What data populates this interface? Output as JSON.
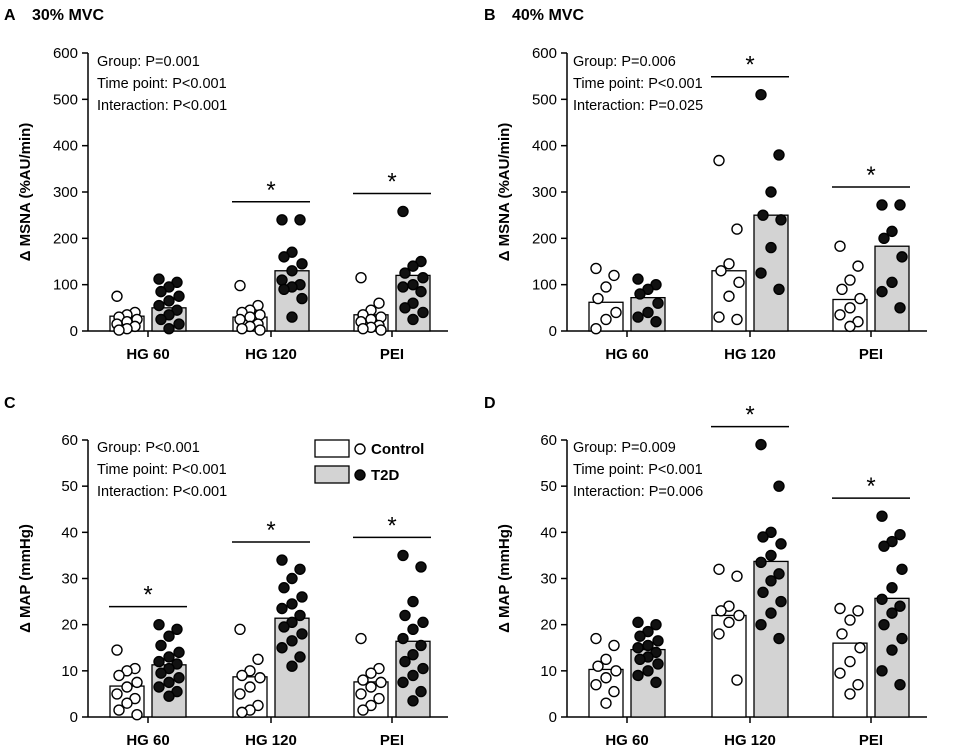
{
  "chart_data": [
    {
      "type": "bar",
      "panel": "A",
      "title": "30% MVC",
      "ylabel": "Δ MSNA (%AU/min)",
      "xlabel": "",
      "ylim": [
        0,
        600
      ],
      "yticks": [
        0,
        100,
        200,
        300,
        400,
        500,
        600
      ],
      "categories": [
        "HG 60",
        "HG 120",
        "PEI"
      ],
      "stats": [
        "Group: P=0.001",
        "Time point: P<0.001",
        "Interaction: P<0.001"
      ],
      "significance": [
        false,
        true,
        true
      ],
      "series": [
        {
          "name": "Control",
          "values": [
            32,
            30,
            35
          ],
          "points": [
            [
              75,
              40,
              35,
              30,
              25,
              20,
              15,
              10,
              5,
              2
            ],
            [
              98,
              55,
              45,
              40,
              35,
              30,
              25,
              15,
              10,
              5,
              2
            ],
            [
              115,
              60,
              45,
              35,
              30,
              25,
              20,
              12,
              8,
              5,
              2
            ]
          ]
        },
        {
          "name": "T2D",
          "values": [
            50,
            130,
            120
          ],
          "points": [
            [
              112,
              105,
              95,
              85,
              75,
              65,
              55,
              45,
              35,
              25,
              15,
              5
            ],
            [
              240,
              240,
              170,
              160,
              145,
              130,
              110,
              100,
              95,
              90,
              70,
              30
            ],
            [
              258,
              150,
              140,
              125,
              115,
              100,
              95,
              85,
              60,
              50,
              40,
              25
            ]
          ]
        }
      ]
    },
    {
      "type": "bar",
      "panel": "B",
      "title": "40% MVC",
      "ylabel": "Δ MSNA (%AU/min)",
      "xlabel": "",
      "ylim": [
        0,
        600
      ],
      "yticks": [
        0,
        100,
        200,
        300,
        400,
        500,
        600
      ],
      "categories": [
        "HG 60",
        "HG 120",
        "PEI"
      ],
      "stats": [
        "Group: P=0.006",
        "Time point: P<0.001",
        "Interaction: P=0.025"
      ],
      "significance": [
        false,
        true,
        true
      ],
      "series": [
        {
          "name": "Control",
          "values": [
            62,
            130,
            68
          ],
          "points": [
            [
              135,
              120,
              95,
              70,
              40,
              25,
              5
            ],
            [
              368,
              220,
              145,
              130,
              105,
              75,
              30,
              25
            ],
            [
              183,
              140,
              110,
              90,
              70,
              50,
              35,
              20,
              10
            ]
          ]
        },
        {
          "name": "T2D",
          "values": [
            72,
            250,
            183
          ],
          "points": [
            [
              112,
              100,
              90,
              80,
              60,
              40,
              30,
              20
            ],
            [
              510,
              380,
              300,
              250,
              240,
              180,
              125,
              90
            ],
            [
              272,
              272,
              215,
              200,
              160,
              105,
              85,
              50
            ]
          ]
        }
      ]
    },
    {
      "type": "bar",
      "panel": "C",
      "title": "",
      "ylabel": "Δ MAP (mmHg)",
      "xlabel": "",
      "ylim": [
        0,
        60
      ],
      "yticks": [
        0,
        10,
        20,
        30,
        40,
        50,
        60
      ],
      "categories": [
        "HG 60",
        "HG 120",
        "PEI"
      ],
      "stats": [
        "Group: P<0.001",
        "Time point: P<0.001",
        "Interaction: P<0.001"
      ],
      "significance": [
        true,
        true,
        true
      ],
      "legend": {
        "placement": "top-center",
        "entries": [
          "Control",
          "T2D"
        ]
      },
      "series": [
        {
          "name": "Control",
          "values": [
            6.7,
            8.7,
            7.6
          ],
          "points": [
            [
              14.5,
              10.5,
              10,
              9,
              7.5,
              6.5,
              5,
              4,
              3,
              1.5,
              0.5
            ],
            [
              19,
              12.5,
              10,
              9,
              8.5,
              6.5,
              5,
              2.5,
              1.5,
              1
            ],
            [
              17,
              10.5,
              9.5,
              8,
              7.5,
              6.5,
              5,
              4,
              2.5,
              1.5
            ]
          ]
        },
        {
          "name": "T2D",
          "values": [
            11.3,
            21.4,
            16.4
          ],
          "points": [
            [
              20,
              19,
              17.5,
              15.5,
              14,
              13,
              12,
              11.5,
              10.5,
              9.5,
              8.5,
              7.5,
              6.5,
              5.5,
              4.5
            ],
            [
              34,
              32,
              30,
              28,
              26,
              24.5,
              23.5,
              22,
              20.5,
              19.5,
              18,
              16.5,
              15,
              13,
              11
            ],
            [
              35,
              32.5,
              25,
              22,
              20.5,
              19,
              17,
              15.5,
              13.5,
              12,
              10.5,
              9,
              7.5,
              5.5,
              3.5
            ]
          ]
        }
      ]
    },
    {
      "type": "bar",
      "panel": "D",
      "title": "",
      "ylabel": "Δ MAP (mmHg)",
      "xlabel": "",
      "ylim": [
        0,
        60
      ],
      "yticks": [
        0,
        10,
        20,
        30,
        40,
        50,
        60
      ],
      "categories": [
        "HG 60",
        "HG 120",
        "PEI"
      ],
      "stats": [
        "Group: P=0.009",
        "Time point: P<0.001",
        "Interaction: P=0.006"
      ],
      "significance": [
        false,
        true,
        true
      ],
      "series": [
        {
          "name": "Control",
          "values": [
            10.3,
            22.0,
            16.0
          ],
          "points": [
            [
              17,
              15.5,
              12.5,
              11,
              10,
              8.5,
              7,
              5.5,
              3
            ],
            [
              32,
              30.5,
              24,
              23,
              22,
              20.5,
              18,
              8
            ],
            [
              23.5,
              23,
              21,
              18,
              15,
              12,
              9.5,
              7,
              5
            ]
          ]
        },
        {
          "name": "T2D",
          "values": [
            14.6,
            33.7,
            25.7
          ],
          "points": [
            [
              20.5,
              20,
              18.5,
              17.5,
              16.5,
              15.5,
              15,
              14,
              13,
              12.5,
              11.5,
              10,
              9,
              7.5
            ],
            [
              59,
              50,
              40,
              39,
              37.5,
              35,
              33.5,
              31,
              29.5,
              27,
              25,
              22.5,
              20,
              17
            ],
            [
              43.5,
              39.5,
              38,
              37,
              32,
              28,
              25.5,
              24,
              22.5,
              20,
              17,
              14.5,
              10,
              7
            ]
          ]
        }
      ]
    }
  ]
}
